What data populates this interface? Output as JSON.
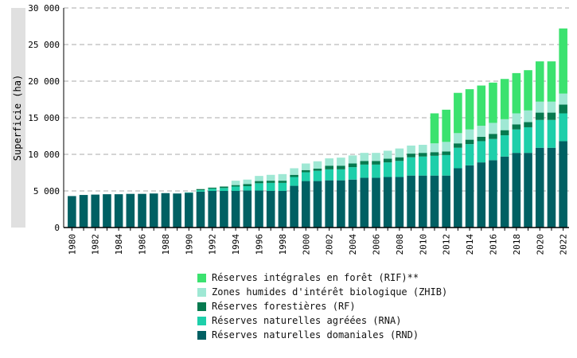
{
  "chart_data": {
    "type": "bar",
    "stacked": true,
    "ylabel": "Superficie (ha)",
    "ylim": [
      0,
      30000
    ],
    "yticks": [
      0,
      5000,
      10000,
      15000,
      20000,
      25000,
      30000
    ],
    "ytick_labels": [
      "0",
      "5 000",
      "10 000",
      "15 000",
      "20 000",
      "25 000",
      "30 000"
    ],
    "grid": "horizontal dashed",
    "legend_position": "bottom",
    "categories": [
      "1980",
      "1981",
      "1982",
      "1983",
      "1984",
      "1985",
      "1986",
      "1987",
      "1988",
      "1989",
      "1990",
      "1991",
      "1992",
      "1993",
      "1994",
      "1995",
      "1996",
      "1997",
      "1998",
      "1999",
      "2000",
      "2001",
      "2002",
      "2003",
      "2004",
      "2005",
      "2006",
      "2007",
      "2008",
      "2009",
      "2010",
      "2011",
      "2012",
      "2013",
      "2014",
      "2015",
      "2016",
      "2017",
      "2018",
      "2019",
      "2020",
      "2021",
      "2022"
    ],
    "xtick_labels": [
      "1980",
      "1982",
      "1984",
      "1986",
      "1988",
      "1990",
      "1992",
      "1994",
      "1996",
      "1998",
      "2000",
      "2002",
      "2004",
      "2006",
      "2008",
      "2010",
      "2012",
      "2014",
      "2016",
      "2018",
      "2020",
      "2022"
    ],
    "series": [
      {
        "name": "Réserves naturelles domaniales (RND)",
        "color": "#006063",
        "values": [
          4300,
          4450,
          4500,
          4550,
          4550,
          4600,
          4600,
          4650,
          4700,
          4650,
          4750,
          4900,
          5000,
          5000,
          5000,
          5050,
          5050,
          5000,
          5000,
          5700,
          6350,
          6350,
          6450,
          6450,
          6550,
          6800,
          6800,
          6900,
          6900,
          7100,
          7100,
          7100,
          7100,
          8100,
          8500,
          8900,
          9200,
          9700,
          10200,
          10200,
          10900,
          10900,
          11800
        ]
      },
      {
        "name": "Réserves naturelles agréées (RNA)",
        "color": "#1ecfaa",
        "values": [
          0,
          0,
          0,
          0,
          0,
          0,
          0,
          0,
          0,
          0,
          50,
          200,
          300,
          400,
          600,
          600,
          1000,
          1100,
          1100,
          1200,
          1200,
          1400,
          1500,
          1500,
          1700,
          1800,
          1800,
          2000,
          2200,
          2500,
          2600,
          2700,
          2800,
          2800,
          2900,
          2900,
          2900,
          2900,
          3200,
          3500,
          3800,
          3800,
          3800
        ]
      },
      {
        "name": "Réserves forestières (RF)",
        "color": "#067a4f",
        "values": [
          0,
          0,
          0,
          0,
          0,
          0,
          0,
          0,
          0,
          0,
          0,
          150,
          150,
          200,
          200,
          300,
          300,
          300,
          300,
          300,
          300,
          300,
          500,
          500,
          500,
          500,
          500,
          500,
          500,
          500,
          500,
          500,
          500,
          600,
          600,
          600,
          700,
          700,
          700,
          700,
          1000,
          1000,
          1200
        ]
      },
      {
        "name": "Zones humides d'intérêt biologique (ZHIB)",
        "color": "#9fe8d4",
        "values": [
          0,
          0,
          0,
          0,
          0,
          0,
          0,
          0,
          0,
          0,
          0,
          0,
          0,
          0,
          600,
          600,
          700,
          800,
          900,
          900,
          900,
          1000,
          1000,
          1100,
          1100,
          1100,
          1100,
          1100,
          1200,
          1100,
          1100,
          1200,
          1300,
          1400,
          1400,
          1500,
          1500,
          1500,
          1500,
          1600,
          1500,
          1500,
          1500
        ]
      },
      {
        "name": "Réserves intégrales en forêt (RIF)**",
        "color": "#3be26f",
        "values": [
          0,
          0,
          0,
          0,
          0,
          0,
          0,
          0,
          0,
          0,
          0,
          0,
          0,
          0,
          0,
          0,
          0,
          0,
          0,
          0,
          0,
          0,
          0,
          0,
          0,
          0,
          0,
          0,
          0,
          0,
          0,
          4100,
          4400,
          5500,
          5500,
          5500,
          5500,
          5500,
          5500,
          5500,
          5500,
          5500,
          8900
        ]
      }
    ]
  },
  "legend": {
    "items": [
      {
        "label": "Réserves intégrales en forêt (RIF)**",
        "color": "#3be26f"
      },
      {
        "label": "Zones humides d'intérêt biologique (ZHIB)",
        "color": "#9fe8d4"
      },
      {
        "label": "Réserves forestières (RF)",
        "color": "#067a4f"
      },
      {
        "label": "Réserves naturelles agréées (RNA)",
        "color": "#1ecfaa"
      },
      {
        "label": "Réserves naturelles domaniales (RND)",
        "color": "#006063"
      }
    ]
  }
}
